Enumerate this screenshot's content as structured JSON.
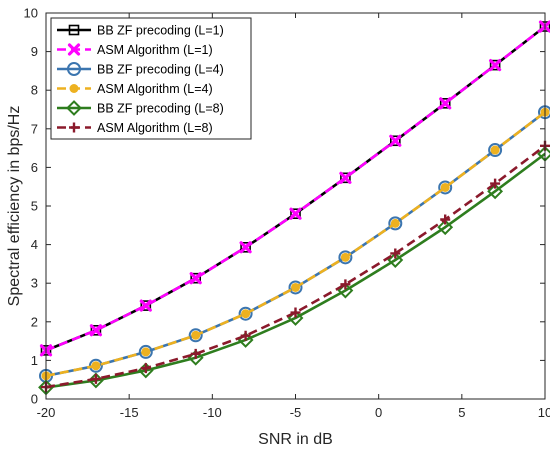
{
  "chart_data": {
    "type": "line",
    "title": "",
    "xlabel": "SNR in dB",
    "ylabel": "Spectral efficiency in bps/Hz",
    "xlim": [
      -20,
      10
    ],
    "ylim": [
      0,
      10
    ],
    "xticks": [
      -20,
      -15,
      -10,
      -5,
      0,
      5,
      10
    ],
    "yticks": [
      0,
      1,
      2,
      3,
      4,
      5,
      6,
      7,
      8,
      9,
      10
    ],
    "grid": false,
    "legend_position": "top-left",
    "x": [
      -20,
      -17,
      -14,
      -11,
      -8,
      -5,
      -2,
      1,
      4,
      7,
      10
    ],
    "series": [
      {
        "name": "BB ZF precoding (L=1)",
        "color": "#000000",
        "dash": "solid",
        "marker": "square",
        "values": [
          1.26,
          1.78,
          2.42,
          3.13,
          3.93,
          4.8,
          5.73,
          6.69,
          7.66,
          8.65,
          9.65
        ]
      },
      {
        "name": "ASM Algorithm  (L=1)",
        "color": "#ff00ff",
        "dash": "dashed",
        "marker": "x",
        "values": [
          1.26,
          1.78,
          2.42,
          3.13,
          3.93,
          4.8,
          5.73,
          6.69,
          7.66,
          8.65,
          9.65
        ]
      },
      {
        "name": "BB ZF precoding (L=4)",
        "color": "#3b75af",
        "dash": "solid",
        "marker": "circle",
        "values": [
          0.6,
          0.86,
          1.22,
          1.65,
          2.21,
          2.89,
          3.67,
          4.55,
          5.48,
          6.45,
          7.43
        ]
      },
      {
        "name": "ASM Algorithm  (L=4)",
        "color": "#edb120",
        "dash": "dashed",
        "marker": "dot",
        "values": [
          0.6,
          0.86,
          1.22,
          1.65,
          2.21,
          2.89,
          3.67,
          4.55,
          5.48,
          6.45,
          7.43
        ]
      },
      {
        "name": "BB ZF precoding (L=8)",
        "color": "#2e7d1e",
        "dash": "solid",
        "marker": "diamond",
        "values": [
          0.3,
          0.48,
          0.74,
          1.07,
          1.53,
          2.1,
          2.81,
          3.6,
          4.45,
          5.38,
          6.35
        ]
      },
      {
        "name": "ASM Algorithm  (L=8)",
        "color": "#8b1a2c",
        "dash": "dashed",
        "marker": "plus",
        "values": [
          0.31,
          0.52,
          0.8,
          1.17,
          1.64,
          2.24,
          2.97,
          3.77,
          4.65,
          5.58,
          6.56
        ]
      }
    ]
  }
}
